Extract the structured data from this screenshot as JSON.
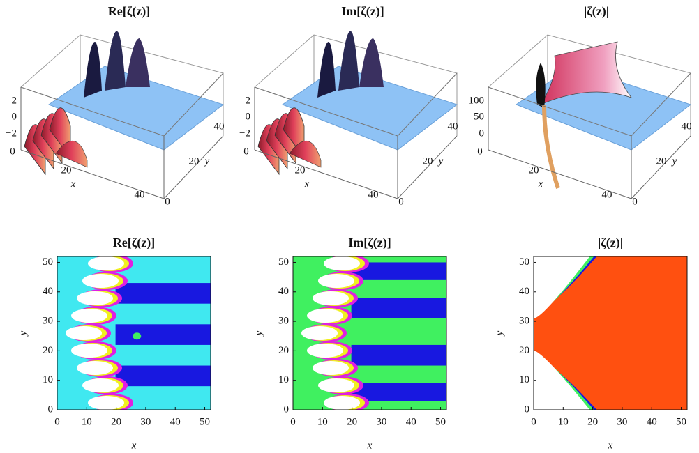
{
  "top": [
    {
      "title": "Re[ζ(z)]",
      "z_ticks": [
        "2",
        "0",
        "−2"
      ],
      "x_ticks": [
        "0",
        "20",
        "40"
      ],
      "y_ticks": [
        "0",
        "20",
        "40"
      ],
      "x_label": "x",
      "y_label": "y"
    },
    {
      "title": "Im[ζ(z)]",
      "z_ticks": [
        "2",
        "0",
        "−2"
      ],
      "x_ticks": [
        "0",
        "20",
        "40"
      ],
      "y_ticks": [
        "0",
        "20",
        "40"
      ],
      "x_label": "x",
      "y_label": "y"
    },
    {
      "title": "|ζ(z)|",
      "z_ticks": [
        "100",
        "50",
        "0"
      ],
      "x_ticks": [
        "0",
        "20",
        "40"
      ],
      "y_ticks": [
        "0",
        "20",
        "40"
      ],
      "x_label": "x",
      "y_label": "y"
    }
  ],
  "bottom": [
    {
      "title": "Re[ζ(z)]",
      "xlim": [
        0,
        52
      ],
      "ylim": [
        0,
        52
      ],
      "xticks": [
        0,
        10,
        20,
        30,
        40,
        50
      ],
      "yticks": [
        0,
        10,
        20,
        30,
        40,
        50
      ],
      "x_label": "x",
      "y_label": "y"
    },
    {
      "title": "Im[ζ(z)]",
      "xlim": [
        0,
        52
      ],
      "ylim": [
        0,
        52
      ],
      "xticks": [
        0,
        10,
        20,
        30,
        40,
        50
      ],
      "yticks": [
        0,
        10,
        20,
        30,
        40,
        50
      ],
      "x_label": "x",
      "y_label": "y"
    },
    {
      "title": "|ζ(z)|",
      "xlim": [
        0,
        52
      ],
      "ylim": [
        0,
        52
      ],
      "xticks": [
        0,
        10,
        20,
        30,
        40,
        50
      ],
      "yticks": [
        0,
        10,
        20,
        30,
        40,
        50
      ],
      "x_label": "x",
      "y_label": "y"
    }
  ]
}
